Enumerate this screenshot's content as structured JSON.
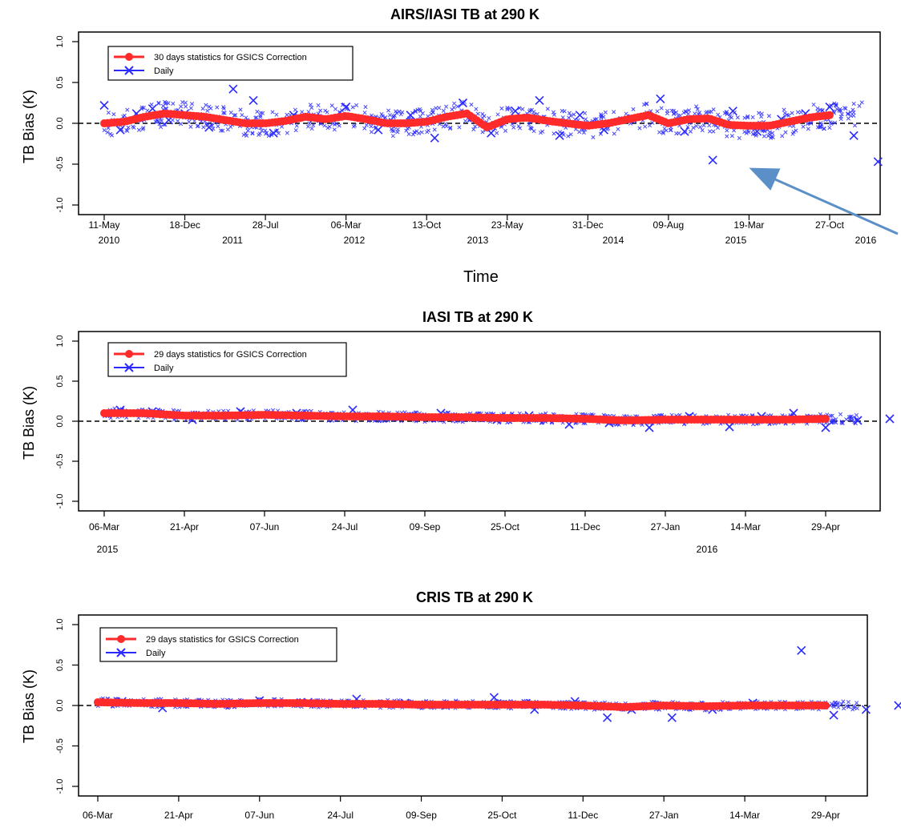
{
  "chart_data": [
    {
      "type": "scatter",
      "title": "AIRS/IASI TB at 290 K",
      "xlabel": "Time",
      "ylabel": "TB Bias (K)",
      "ylim": [
        -1.0,
        1.0
      ],
      "yticks": [
        "-1.0",
        "-0.5",
        "0.0",
        "0.5",
        "1.0"
      ],
      "reference_line_y": 0.0,
      "x_tick_labels": [
        "11-May",
        "18-Dec",
        "28-Jul",
        "06-Mar",
        "13-Oct",
        "23-May",
        "31-Dec",
        "09-Aug",
        "19-Mar",
        "27-Oct"
      ],
      "x_year_labels": [
        "2010",
        "2011",
        "2012",
        "2013",
        "2014",
        "2015",
        "2016"
      ],
      "legend_position": "top-left",
      "series": [
        {
          "name": "30 days statistics for GSICS Correction",
          "color": "#ff2a2a",
          "marker": "filled-circle",
          "x": [
            0.0,
            0.25,
            0.5,
            0.75,
            1.0,
            1.25,
            1.5,
            1.75,
            2.0,
            2.25,
            2.5,
            2.75,
            3.0,
            3.25,
            3.5,
            3.75,
            4.0,
            4.25,
            4.5,
            4.75,
            5.0,
            5.25,
            5.5,
            5.75,
            6.0,
            6.25,
            6.5,
            6.75,
            7.0,
            7.25,
            7.5,
            7.75,
            8.0,
            8.25,
            8.5,
            8.75,
            9.0,
            9.25,
            9.5,
            9.75
          ],
          "y": [
            0.0,
            0.02,
            0.08,
            0.12,
            0.1,
            0.08,
            0.04,
            0.0,
            0.0,
            0.03,
            0.08,
            0.05,
            0.09,
            0.05,
            0.0,
            0.0,
            0.02,
            0.08,
            0.12,
            -0.05,
            0.05,
            0.07,
            0.03,
            0.0,
            -0.03,
            0.0,
            0.05,
            0.1,
            0.0,
            0.05,
            0.06,
            -0.02,
            -0.03,
            -0.03,
            0.02,
            0.07,
            0.1,
            0.05,
            -0.03,
            -0.02
          ]
        },
        {
          "name": "Daily",
          "color": "#2a2aff",
          "marker": "x",
          "x": [
            0.0,
            0.2,
            0.4,
            0.6,
            0.8,
            1.0,
            1.3,
            1.6,
            1.85,
            2.1,
            2.35,
            2.6,
            3.0,
            3.4,
            3.8,
            4.1,
            4.45,
            4.8,
            5.1,
            5.4,
            5.65,
            5.9,
            6.2,
            6.55,
            6.9,
            7.2,
            7.55,
            7.8,
            8.1,
            8.4,
            8.7,
            9.0,
            9.3,
            9.6
          ],
          "y": [
            0.22,
            -0.08,
            0.12,
            0.18,
            0.04,
            0.12,
            -0.05,
            0.42,
            0.28,
            -0.12,
            0.1,
            0.06,
            0.2,
            -0.08,
            0.1,
            -0.18,
            0.25,
            -0.12,
            0.15,
            0.28,
            -0.15,
            0.1,
            -0.08,
            0.06,
            0.3,
            -0.1,
            -0.45,
            0.15,
            -0.1,
            0.05,
            0.12,
            0.2,
            -0.15,
            -0.47
          ]
        }
      ]
    },
    {
      "type": "scatter",
      "title": "IASI TB at 290 K",
      "xlabel": "",
      "ylabel": "TB Bias (K)",
      "ylim": [
        -1.0,
        1.0
      ],
      "yticks": [
        "-1.0",
        "-0.5",
        "0.0",
        "0.5",
        "1.0"
      ],
      "reference_line_y": 0.0,
      "x_tick_labels": [
        "06-Mar",
        "21-Apr",
        "07-Jun",
        "24-Jul",
        "09-Sep",
        "25-Oct",
        "11-Dec",
        "27-Jan",
        "14-Mar",
        "29-Apr"
      ],
      "x_year_labels": [
        "2015",
        "2016"
      ],
      "legend_position": "top-left",
      "series": [
        {
          "name": "29 days statistics for GSICS Correction",
          "color": "#ff2a2a",
          "marker": "filled-circle",
          "x": [
            0.0,
            0.5,
            1.0,
            1.5,
            2.0,
            2.5,
            3.0,
            3.5,
            4.0,
            4.5,
            5.0,
            5.5,
            6.0,
            6.5,
            7.0,
            7.5,
            8.0,
            8.5,
            9.0,
            9.5
          ],
          "y": [
            0.1,
            0.1,
            0.07,
            0.07,
            0.08,
            0.07,
            0.06,
            0.06,
            0.05,
            0.05,
            0.04,
            0.04,
            0.03,
            0.01,
            0.02,
            0.02,
            0.02,
            0.02,
            0.03,
            0.03
          ]
        },
        {
          "name": "Daily",
          "color": "#2a2aff",
          "marker": "x",
          "x": [
            0.2,
            0.6,
            1.1,
            1.7,
            2.4,
            3.1,
            3.6,
            4.2,
            4.9,
            5.3,
            5.8,
            6.3,
            6.8,
            7.3,
            7.8,
            8.2,
            8.6,
            9.0,
            9.4,
            9.8
          ],
          "y": [
            0.14,
            0.12,
            0.02,
            0.12,
            0.1,
            0.14,
            0.05,
            0.1,
            0.02,
            0.07,
            -0.04,
            -0.02,
            -0.08,
            0.06,
            -0.07,
            0.06,
            0.1,
            -0.08,
            0.01,
            0.03
          ]
        }
      ]
    },
    {
      "type": "scatter",
      "title": "CRIS TB at 290 K",
      "xlabel": "",
      "ylabel": "TB Bias (K)",
      "ylim": [
        -1.0,
        1.0
      ],
      "yticks": [
        "-1.0",
        "-0.5",
        "0.0",
        "0.5",
        "1.0"
      ],
      "reference_line_y": 0.0,
      "x_tick_labels": [
        "06-Mar",
        "21-Apr",
        "07-Jun",
        "24-Jul",
        "09-Sep",
        "25-Oct",
        "11-Dec",
        "27-Jan",
        "14-Mar",
        "29-Apr"
      ],
      "x_year_labels": [],
      "legend_position": "top-left",
      "series": [
        {
          "name": "29 days statistics for GSICS Correction",
          "color": "#ff2a2a",
          "marker": "filled-circle",
          "x": [
            0.0,
            0.5,
            1.0,
            1.5,
            2.0,
            2.5,
            3.0,
            3.5,
            4.0,
            4.5,
            5.0,
            5.5,
            6.0,
            6.5,
            7.0,
            7.5,
            8.0,
            8.5,
            9.0,
            9.5
          ],
          "y": [
            0.04,
            0.03,
            0.03,
            0.02,
            0.03,
            0.03,
            0.02,
            0.02,
            0.01,
            0.01,
            0.01,
            0.01,
            0.0,
            -0.02,
            0.0,
            -0.01,
            0.0,
            0.0,
            0.0,
            0.0
          ]
        },
        {
          "name": "Daily",
          "color": "#2a2aff",
          "marker": "x",
          "x": [
            0.3,
            0.8,
            1.4,
            2.0,
            2.6,
            3.2,
            3.8,
            4.3,
            4.9,
            5.4,
            5.9,
            6.3,
            6.6,
            7.1,
            7.6,
            8.1,
            8.7,
            9.1,
            9.5,
            9.9
          ],
          "y": [
            0.05,
            -0.03,
            0.02,
            0.06,
            0.04,
            0.08,
            0.03,
            0.0,
            0.1,
            -0.05,
            0.05,
            -0.15,
            -0.05,
            -0.15,
            -0.05,
            0.03,
            0.68,
            -0.12,
            -0.05,
            0.0
          ]
        }
      ]
    }
  ]
}
